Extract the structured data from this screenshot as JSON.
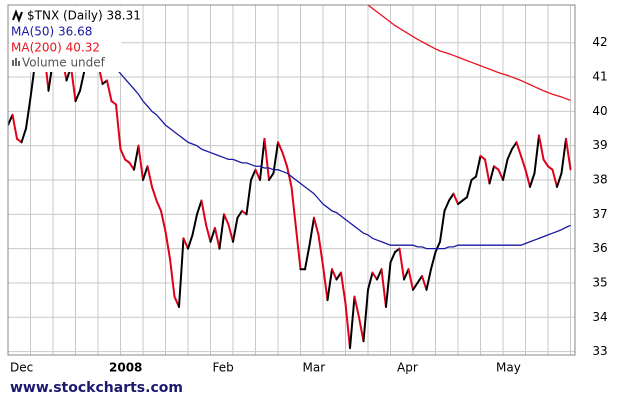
{
  "chart_data": {
    "type": "line",
    "title": null,
    "categories": [
      "Dec",
      null,
      null,
      null,
      null,
      null,
      null,
      null,
      null,
      null,
      null,
      null,
      null,
      null,
      null,
      null,
      null,
      null,
      null,
      null,
      null,
      null,
      "2008",
      null,
      null,
      null,
      null,
      null,
      null,
      null,
      null,
      null,
      null,
      null,
      null,
      null,
      null,
      null,
      null,
      null,
      null,
      null,
      null,
      null,
      null,
      "Feb",
      null,
      null,
      null,
      null,
      null,
      null,
      null,
      null,
      null,
      null,
      null,
      null,
      null,
      null,
      null,
      null,
      null,
      null,
      null,
      "Mar",
      null,
      null,
      null,
      null,
      null,
      null,
      null,
      null,
      null,
      null,
      null,
      null,
      null,
      null,
      null,
      null,
      null,
      null,
      null,
      null,
      "Apr",
      null,
      null,
      null,
      null,
      null,
      null,
      null,
      null,
      null,
      null,
      null,
      null,
      null,
      null,
      null,
      null,
      null,
      null,
      null,
      null,
      null,
      "May",
      null,
      null,
      null,
      null,
      null,
      null,
      null,
      null,
      null,
      null,
      null,
      null,
      null,
      null,
      null,
      null,
      null
    ],
    "series": [
      {
        "name": "$TNX (Daily) 38.31",
        "color": "#000000",
        "down_color": "#e0001b",
        "values": [
          39.6,
          39.9,
          39.2,
          39.1,
          39.5,
          40.4,
          41.4,
          42.6,
          41.8,
          40.6,
          41.5,
          42.2,
          41.6,
          40.9,
          41.3,
          40.3,
          40.6,
          41.2,
          42.0,
          42.5,
          41.4,
          40.8,
          40.9,
          40.3,
          40.2,
          38.9,
          38.6,
          38.5,
          38.3,
          39.0,
          38.0,
          38.4,
          37.8,
          37.4,
          37.1,
          36.5,
          35.7,
          34.6,
          34.3,
          36.3,
          36.0,
          36.4,
          37.0,
          37.4,
          36.7,
          36.2,
          36.6,
          36.0,
          37.0,
          36.7,
          36.2,
          36.9,
          37.1,
          37.0,
          38.0,
          38.3,
          38.0,
          39.2,
          38.0,
          38.2,
          39.1,
          38.8,
          38.4,
          37.8,
          36.6,
          35.4,
          35.4,
          36.1,
          36.9,
          36.4,
          35.5,
          34.5,
          35.4,
          35.1,
          35.3,
          34.4,
          33.1,
          34.6,
          34.0,
          33.3,
          34.8,
          35.3,
          35.1,
          35.4,
          34.3,
          35.6,
          35.9,
          36.0,
          35.1,
          35.4,
          34.8,
          35.0,
          35.2,
          34.8,
          35.4,
          35.9,
          36.2,
          37.1,
          37.4,
          37.6,
          37.3,
          37.4,
          37.5,
          38.0,
          38.1,
          38.7,
          38.6,
          37.9,
          38.4,
          38.3,
          38.0,
          38.6,
          38.9,
          39.1,
          38.7,
          38.3,
          37.8,
          38.2,
          39.3,
          38.6,
          38.4,
          38.3,
          37.8,
          38.2,
          39.2,
          38.31
        ]
      },
      {
        "name": "MA(50) 36.68",
        "color": "#1a1aa0",
        "values": [
          null,
          null,
          null,
          null,
          null,
          null,
          null,
          null,
          null,
          null,
          null,
          null,
          null,
          null,
          null,
          null,
          null,
          null,
          null,
          null,
          41.9,
          41.7,
          41.5,
          41.4,
          41.25,
          41.1,
          40.95,
          40.8,
          40.65,
          40.5,
          40.3,
          40.15,
          40.0,
          39.9,
          39.75,
          39.6,
          39.5,
          39.4,
          39.3,
          39.2,
          39.1,
          39.05,
          39.0,
          38.9,
          38.85,
          38.8,
          38.75,
          38.7,
          38.65,
          38.6,
          38.6,
          38.55,
          38.5,
          38.5,
          38.45,
          38.4,
          38.4,
          38.35,
          38.35,
          38.3,
          38.3,
          38.25,
          38.2,
          38.1,
          38.0,
          37.9,
          37.8,
          37.7,
          37.6,
          37.45,
          37.3,
          37.2,
          37.1,
          37.05,
          36.95,
          36.85,
          36.75,
          36.65,
          36.55,
          36.45,
          36.4,
          36.3,
          36.25,
          36.2,
          36.15,
          36.1,
          36.1,
          36.1,
          36.1,
          36.1,
          36.1,
          36.05,
          36.05,
          36.0,
          36.0,
          36.0,
          36.0,
          36.0,
          36.05,
          36.05,
          36.1,
          36.1,
          36.1,
          36.1,
          36.1,
          36.1,
          36.1,
          36.1,
          36.1,
          36.1,
          36.1,
          36.1,
          36.1,
          36.1,
          36.1,
          36.15,
          36.2,
          36.25,
          36.3,
          36.35,
          36.4,
          36.45,
          36.5,
          36.55,
          36.62,
          36.68
        ]
      },
      {
        "name": "MA(200) 40.32",
        "color": "#e8141e",
        "values": [
          null,
          null,
          null,
          null,
          null,
          null,
          null,
          null,
          null,
          null,
          null,
          null,
          null,
          null,
          null,
          null,
          null,
          null,
          null,
          null,
          null,
          null,
          null,
          null,
          null,
          null,
          null,
          null,
          null,
          null,
          null,
          null,
          null,
          null,
          null,
          null,
          null,
          null,
          null,
          null,
          null,
          null,
          null,
          null,
          null,
          null,
          null,
          null,
          null,
          null,
          null,
          null,
          null,
          null,
          null,
          null,
          null,
          null,
          null,
          null,
          null,
          null,
          null,
          null,
          null,
          null,
          null,
          null,
          null,
          null,
          null,
          null,
          null,
          null,
          null,
          null,
          null,
          null,
          null,
          null,
          43.1,
          43.0,
          42.9,
          42.8,
          42.7,
          42.6,
          42.5,
          42.42,
          42.34,
          42.26,
          42.18,
          42.1,
          42.03,
          41.96,
          41.89,
          41.82,
          41.76,
          41.72,
          41.68,
          41.63,
          41.58,
          41.53,
          41.48,
          41.43,
          41.38,
          41.33,
          41.28,
          41.23,
          41.18,
          41.13,
          41.09,
          41.05,
          41.0,
          40.95,
          40.9,
          40.84,
          40.78,
          40.72,
          40.66,
          40.6,
          40.55,
          40.5,
          40.46,
          40.42,
          40.37,
          40.32
        ]
      }
    ],
    "volume_label": "Volume undef",
    "watermark": "www.stockcharts.com",
    "ylim": [
      32.9,
      43.1
    ],
    "yticks": [
      33,
      34,
      35,
      36,
      37,
      38,
      39,
      40,
      41,
      42
    ],
    "grid": true
  }
}
